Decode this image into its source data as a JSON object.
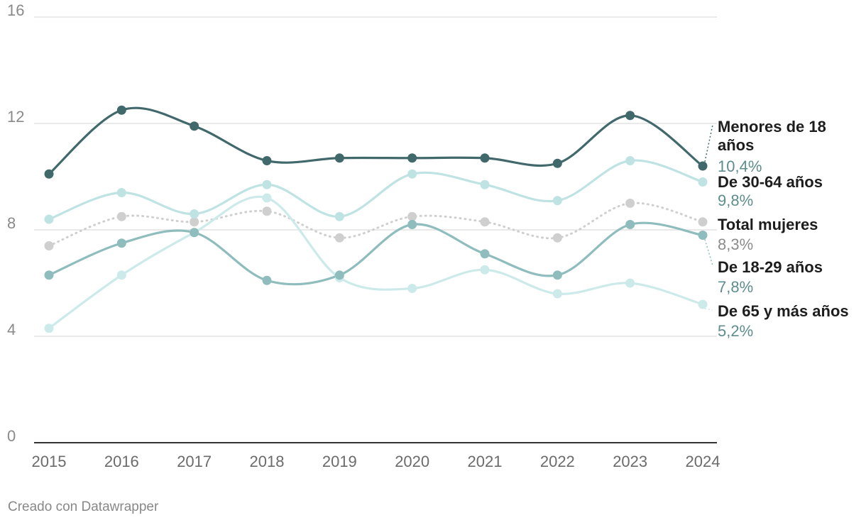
{
  "chart_data": {
    "type": "line",
    "x": [
      "2015",
      "2016",
      "2017",
      "2018",
      "2019",
      "2020",
      "2021",
      "2022",
      "2023",
      "2024"
    ],
    "y_ticks": [
      "0",
      "4",
      "8",
      "12",
      "16"
    ],
    "ylim": [
      0,
      16
    ],
    "grid": true,
    "series": [
      {
        "name": "Total mujeres",
        "value_label": "8,3%",
        "color": "#cfcfcf",
        "value_color": "#8c8c8c",
        "dashed": true,
        "values": [
          7.4,
          8.5,
          8.3,
          8.7,
          7.7,
          8.5,
          8.3,
          7.7,
          9.0,
          8.3
        ]
      },
      {
        "name": "De 65 y más años",
        "value_label": "5,2%",
        "color": "#cdeaea",
        "value_color": "#5f8c8c",
        "dashed": false,
        "values": [
          4.3,
          6.3,
          7.9,
          9.2,
          6.2,
          5.8,
          6.5,
          5.6,
          6.0,
          5.2
        ]
      },
      {
        "name": "De 30-64 años",
        "value_label": "9,8%",
        "color": "#bfe3e3",
        "value_color": "#5f8c8c",
        "dashed": false,
        "values": [
          8.4,
          9.4,
          8.6,
          9.7,
          8.5,
          10.1,
          9.7,
          9.1,
          10.6,
          9.8
        ]
      },
      {
        "name": "De 18-29 años",
        "value_label": "7,8%",
        "color": "#8fbcbc",
        "value_color": "#5f8c8c",
        "dashed": false,
        "values": [
          6.3,
          7.5,
          7.9,
          6.1,
          6.3,
          8.2,
          7.1,
          6.3,
          8.2,
          7.8
        ]
      },
      {
        "name": "Menores de 18 años",
        "label_lines": [
          "Menores de 18",
          "años"
        ],
        "value_label": "10,4%",
        "color": "#41696b",
        "value_color": "#5f8c8c",
        "dashed": false,
        "values": [
          10.1,
          12.5,
          11.9,
          10.6,
          10.7,
          10.7,
          10.7,
          10.5,
          12.3,
          10.4
        ]
      }
    ]
  },
  "credit": "Creado con Datawrapper"
}
